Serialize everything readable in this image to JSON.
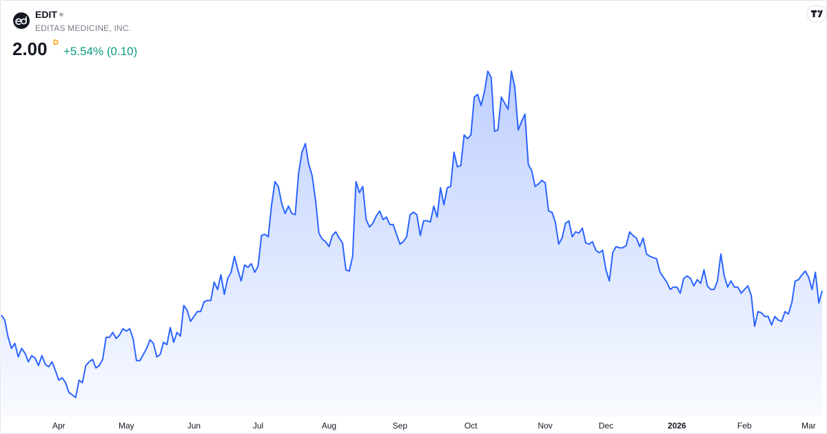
{
  "header": {
    "symbol": "EDIT",
    "company": "EDITAS MEDICINE, INC.",
    "price": "2.00",
    "price_flag": "D",
    "change": "+5.54% (0.10)"
  },
  "chart_data": {
    "type": "area",
    "color": "#2962ff",
    "ylim": [
      1.0,
      4.0
    ],
    "values": [
      1.8,
      1.76,
      1.62,
      1.53,
      1.57,
      1.46,
      1.53,
      1.49,
      1.42,
      1.47,
      1.45,
      1.39,
      1.47,
      1.4,
      1.38,
      1.42,
      1.35,
      1.27,
      1.29,
      1.25,
      1.17,
      1.15,
      1.13,
      1.27,
      1.25,
      1.39,
      1.42,
      1.44,
      1.37,
      1.39,
      1.44,
      1.62,
      1.62,
      1.66,
      1.61,
      1.64,
      1.69,
      1.67,
      1.69,
      1.61,
      1.43,
      1.43,
      1.48,
      1.53,
      1.6,
      1.57,
      1.46,
      1.48,
      1.58,
      1.56,
      1.7,
      1.58,
      1.66,
      1.63,
      1.88,
      1.84,
      1.75,
      1.79,
      1.83,
      1.83,
      1.91,
      1.92,
      1.92,
      2.07,
      2.01,
      2.13,
      1.97,
      2.1,
      2.15,
      2.28,
      2.17,
      2.08,
      2.21,
      2.19,
      2.22,
      2.15,
      2.2,
      2.45,
      2.46,
      2.44,
      2.7,
      2.89,
      2.85,
      2.71,
      2.63,
      2.69,
      2.63,
      2.62,
      2.96,
      3.13,
      3.2,
      3.03,
      2.94,
      2.74,
      2.47,
      2.42,
      2.4,
      2.36,
      2.45,
      2.48,
      2.43,
      2.39,
      2.17,
      2.16,
      2.28,
      2.89,
      2.8,
      2.85,
      2.58,
      2.52,
      2.55,
      2.61,
      2.65,
      2.58,
      2.6,
      2.54,
      2.54,
      2.46,
      2.38,
      2.4,
      2.44,
      2.62,
      2.64,
      2.62,
      2.45,
      2.57,
      2.57,
      2.56,
      2.69,
      2.6,
      2.84,
      2.7,
      2.84,
      2.85,
      3.13,
      3.01,
      3.02,
      3.27,
      3.24,
      3.27,
      3.58,
      3.6,
      3.51,
      3.62,
      3.79,
      3.74,
      3.3,
      3.31,
      3.58,
      3.53,
      3.48,
      3.79,
      3.66,
      3.31,
      3.38,
      3.44,
      3.03,
      2.98,
      2.85,
      2.87,
      2.9,
      2.88,
      2.65,
      2.64,
      2.56,
      2.38,
      2.43,
      2.55,
      2.57,
      2.44,
      2.48,
      2.47,
      2.51,
      2.39,
      2.38,
      2.4,
      2.33,
      2.31,
      2.33,
      2.17,
      2.08,
      2.31,
      2.36,
      2.35,
      2.35,
      2.37,
      2.48,
      2.45,
      2.43,
      2.36,
      2.43,
      2.3,
      2.28,
      2.27,
      2.26,
      2.15,
      2.11,
      2.07,
      2.01,
      2.03,
      2.03,
      1.98,
      2.1,
      2.12,
      2.1,
      2.04,
      2.09,
      2.06,
      2.17,
      2.04,
      2.01,
      2.01,
      2.08,
      2.3,
      2.12,
      2.03,
      2.08,
      2.03,
      2.03,
      1.98,
      2.01,
      2.04,
      1.96,
      1.71,
      1.83,
      1.82,
      1.79,
      1.79,
      1.72,
      1.79,
      1.76,
      1.75,
      1.83,
      1.81,
      1.9,
      2.08,
      2.09,
      2.13,
      2.16,
      2.11,
      2.01,
      2.15,
      1.9,
      2.0
    ],
    "xticks": [
      {
        "value": 17,
        "label": "Apr"
      },
      {
        "value": 37,
        "label": "May"
      },
      {
        "value": 57,
        "label": "Jun"
      },
      {
        "value": 76,
        "label": "Jul"
      },
      {
        "value": 97,
        "label": "Aug"
      },
      {
        "value": 118,
        "label": "Sep"
      },
      {
        "value": 139,
        "label": "Oct"
      },
      {
        "value": 161,
        "label": "Nov"
      },
      {
        "value": 179,
        "label": "Dec"
      },
      {
        "value": 200,
        "label": "2026"
      },
      {
        "value": 220,
        "label": "Feb"
      },
      {
        "value": 239,
        "label": "Mar"
      }
    ]
  }
}
